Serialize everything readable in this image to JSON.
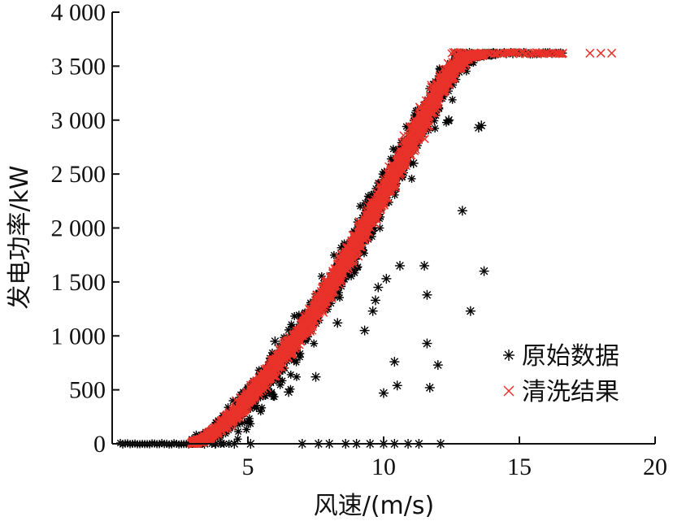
{
  "chart_data": {
    "type": "scatter",
    "xlabel": "风速/(m/s)",
    "ylabel": "发电功率/kW",
    "xlim": [
      0,
      20
    ],
    "ylim": [
      0,
      4000
    ],
    "x_ticks": [
      5,
      10,
      15,
      20
    ],
    "x_tick_labels": [
      "5",
      "10",
      "15",
      "20"
    ],
    "y_ticks": [
      0,
      500,
      1000,
      1500,
      2000,
      2500,
      3000,
      3500,
      4000
    ],
    "y_tick_labels": [
      "0",
      "500",
      "1 000",
      "1 500",
      "2 000",
      "2 500",
      "3 000",
      "3 500",
      "4 000"
    ],
    "grid": false,
    "legend_position": "lower-right",
    "power_curve": [
      [
        2.9,
        0
      ],
      [
        3.5,
        60
      ],
      [
        4.0,
        150
      ],
      [
        4.5,
        270
      ],
      [
        5.0,
        420
      ],
      [
        5.5,
        570
      ],
      [
        6.0,
        730
      ],
      [
        6.5,
        890
      ],
      [
        7.0,
        1060
      ],
      [
        7.5,
        1240
      ],
      [
        8.0,
        1440
      ],
      [
        8.5,
        1650
      ],
      [
        9.0,
        1870
      ],
      [
        9.5,
        2100
      ],
      [
        10.0,
        2330
      ],
      [
        10.5,
        2560
      ],
      [
        11.0,
        2790
      ],
      [
        11.5,
        3030
      ],
      [
        12.0,
        3270
      ],
      [
        12.5,
        3470
      ],
      [
        13.0,
        3580
      ],
      [
        14.0,
        3620
      ],
      [
        16.5,
        3620
      ]
    ],
    "series": [
      {
        "name": "原始数据",
        "marker": "asterisk",
        "color": "#000000",
        "band_width": 0.38,
        "zero_line": {
          "x_start": 0.3,
          "x_end": 2.9
        },
        "outliers": [
          [
            13.5,
            2930
          ],
          [
            12.9,
            2160
          ],
          [
            13.7,
            1600
          ],
          [
            11.5,
            1650
          ],
          [
            11.6,
            1380
          ],
          [
            13.2,
            1230
          ],
          [
            10.6,
            1650
          ],
          [
            10.1,
            1530
          ],
          [
            9.8,
            1450
          ],
          [
            9.7,
            1330
          ],
          [
            9.6,
            1230
          ],
          [
            9.3,
            1050
          ],
          [
            11.6,
            930
          ],
          [
            10.4,
            760
          ],
          [
            12.0,
            730
          ],
          [
            10.5,
            540
          ],
          [
            10.0,
            470
          ],
          [
            11.7,
            520
          ],
          [
            6.0,
            950
          ],
          [
            7.5,
            620
          ],
          [
            6.5,
            480
          ],
          [
            3.4,
            0
          ],
          [
            3.8,
            0
          ],
          [
            4.5,
            0
          ],
          [
            5.1,
            0
          ],
          [
            7.0,
            0
          ],
          [
            7.6,
            0
          ],
          [
            8.0,
            0
          ],
          [
            8.6,
            0
          ],
          [
            9.0,
            0
          ],
          [
            9.5,
            0
          ],
          [
            10.0,
            0
          ],
          [
            10.4,
            0
          ],
          [
            10.9,
            0
          ],
          [
            11.3,
            0
          ],
          [
            12.1,
            0
          ],
          [
            13.6,
            2950
          ],
          [
            12.4,
            3000
          ],
          [
            11.1,
            2600
          ],
          [
            8.3,
            1120
          ]
        ]
      },
      {
        "name": "清洗结果",
        "marker": "x",
        "color": "#e8322a",
        "band_width": 0.28,
        "tail": [
          16.6,
          17.6,
          18.0,
          18.4
        ],
        "tail_y": 3620
      }
    ]
  },
  "legend": {
    "items": [
      {
        "label": "原始数据",
        "marker": "asterisk",
        "color": "#000000"
      },
      {
        "label": "清洗结果",
        "marker": "x",
        "color": "#e8322a"
      }
    ]
  }
}
